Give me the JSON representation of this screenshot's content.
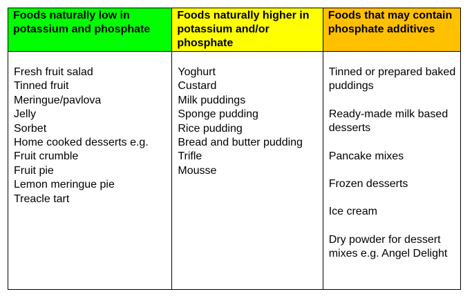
{
  "headers": {
    "low": "Foods naturally low in potassium and phosphate",
    "high": "Foods naturally higher in potassium and/or phosphate",
    "additives": "Foods that may contain phosphate additives"
  },
  "colors": {
    "low_header": "#00ff00",
    "high_header": "#ffff00",
    "additives_header": "#ffc000"
  },
  "low_items": [
    "Fresh fruit salad",
    "Tinned fruit",
    "Meringue/pavlova",
    "Jelly",
    "Sorbet",
    "Home cooked desserts e.g.",
    "Fruit crumble",
    "Fruit pie",
    "Lemon meringue pie",
    "Treacle tart"
  ],
  "high_items": [
    "Yoghurt",
    "Custard",
    "Milk puddings",
    "Sponge pudding",
    "Rice pudding",
    "Bread and butter pudding",
    "Trifle",
    "Mousse"
  ],
  "additive_items": [
    "Tinned or prepared baked puddings",
    "Ready-made milk based desserts",
    "Pancake mixes",
    "Frozen desserts",
    "Ice cream",
    "Dry powder for dessert mixes e.g. Angel Delight"
  ]
}
